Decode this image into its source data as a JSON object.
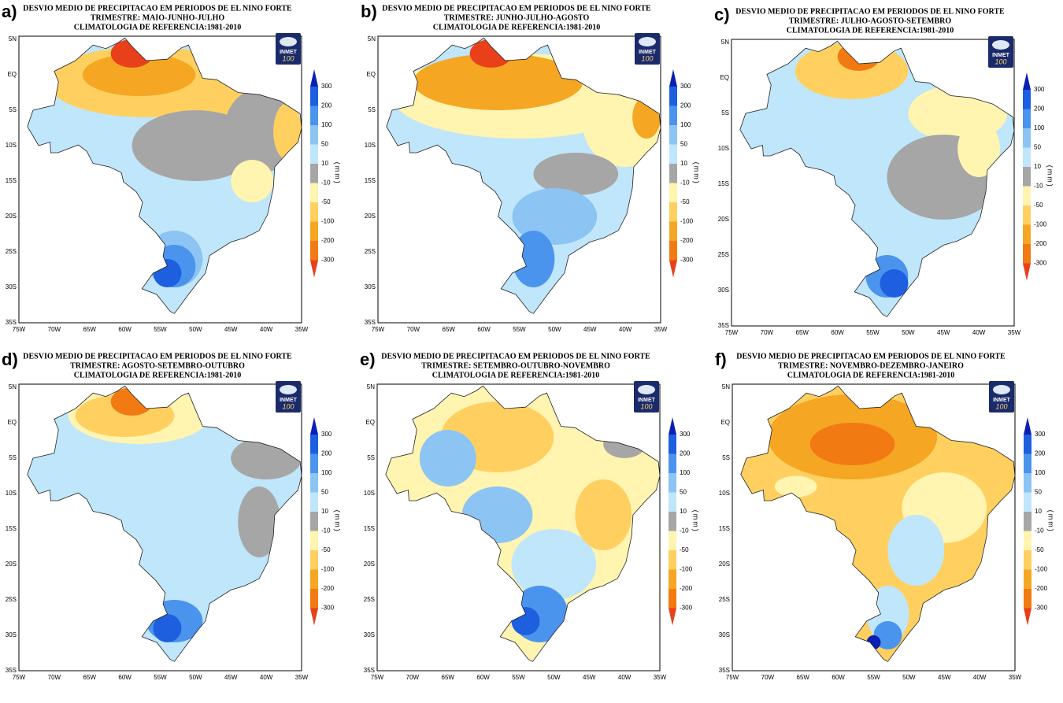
{
  "panels": [
    {
      "letter": "a)",
      "title": [
        "DESVIO MEDIO DE PRECIPITACAO EM PERIODOS DE EL NINO FORTE",
        "TRIMESTRE: MAIO-JUNHO-JULHO",
        "CLIMATOLOGIA DE REFERENCIA:1981-2010"
      ]
    },
    {
      "letter": "b)",
      "title": [
        "DESVIO MEDIO DE PRECIPITACAO EM PERIODOS DE EL NINO FORTE",
        "TRIMESTRE: JUNHO-JULHO-AGOSTO",
        "CLIMATOLOGIA DE REFERENCIA:1981-2010"
      ]
    },
    {
      "letter": "c)",
      "title": [
        "DESVIO MEDIO DE PRECIPITACAO EM PERIODOS DE EL NINO FORTE",
        "TRIMESTRE: JULHO-AGOSTO-SETEMBRO",
        "CLIMATOLOGIA DE REFERENCIA:1981-2010"
      ]
    },
    {
      "letter": "d)",
      "title": [
        "DESVIO MEDIO DE PRECIPITACAO EM PERIODOS DE EL NINO FORTE",
        "TRIMESTRE: AGOSTO-SETEMBRO-OUTUBRO",
        "CLIMATOLOGIA DE REFERENCIA:1981-2010"
      ]
    },
    {
      "letter": "e)",
      "title": [
        "DESVIO MEDIO DE PRECIPITACAO EM PERIODOS DE EL NINO FORTE",
        "TRIMESTRE: SETEMBRO-OUTUBRO-NOVEMBRO",
        "CLIMATOLOGIA DE REFERENCIA:1981-2010"
      ]
    },
    {
      "letter": "f)",
      "title": [
        "DESVIO MEDIO DE PRECIPITACAO EM PERIODOS DE EL NINO FORTE",
        "TRIMESTRE: NOVEMBRO-DEZEMBRO-JANEIRO",
        "CLIMATOLOGIA DE REFERENCIA:1981-2010"
      ]
    }
  ],
  "x_ticks": [
    "75W",
    "70W",
    "65W",
    "60W",
    "55W",
    "50W",
    "45W",
    "40W",
    "35W"
  ],
  "y_ticks": [
    "5N",
    "EQ",
    "5S",
    "10S",
    "15S",
    "20S",
    "25S",
    "30S",
    "35S"
  ],
  "colorbar": {
    "unit": "(mm)",
    "levels": [
      300,
      200,
      100,
      50,
      10,
      -10,
      -50,
      -100,
      -200,
      -300
    ],
    "colors": [
      "#0a1fb4",
      "#1e5fe0",
      "#4a94ee",
      "#8cc4f4",
      "#bfe6fa",
      "#a6a6a6",
      "#fff4b0",
      "#ffd060",
      "#f5a623",
      "#f27a12",
      "#e8401a"
    ]
  },
  "logo": {
    "name": "INMET",
    "years": "100"
  }
}
